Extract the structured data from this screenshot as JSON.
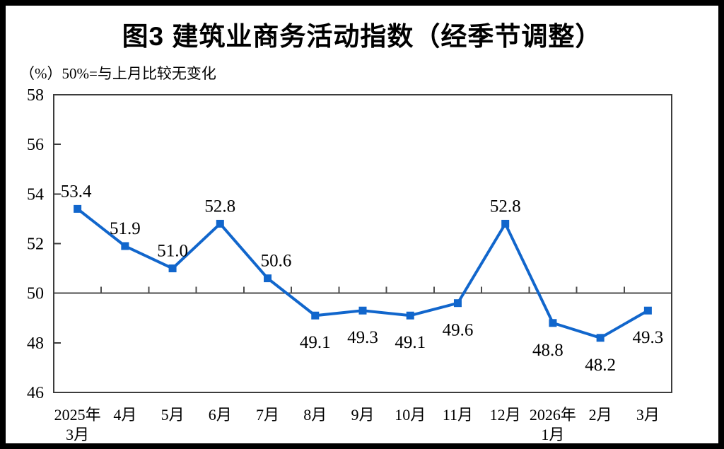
{
  "chart_data": {
    "type": "line",
    "title": "图3 建筑业商务活动指数（经季节调整）",
    "subtitle": "（%）50%=与上月比较无变化",
    "x_categories": [
      [
        "2025年",
        "3月"
      ],
      [
        "4月"
      ],
      [
        "5月"
      ],
      [
        "6月"
      ],
      [
        "7月"
      ],
      [
        "8月"
      ],
      [
        "9月"
      ],
      [
        "10月"
      ],
      [
        "11月"
      ],
      [
        "12月"
      ],
      [
        "2026年",
        "1月"
      ],
      [
        "2月"
      ],
      [
        "3月"
      ]
    ],
    "values": [
      53.4,
      51.9,
      51.0,
      52.8,
      50.6,
      49.1,
      49.3,
      49.1,
      49.6,
      52.8,
      48.8,
      48.2,
      49.3
    ],
    "value_labels": [
      "53.4",
      "51.9",
      "51.0",
      "52.8",
      "50.6",
      "49.1",
      "49.3",
      "49.1",
      "49.6",
      "52.8",
      "48.8",
      "48.2",
      "49.3"
    ],
    "y_axis": {
      "min": 46,
      "max": 58,
      "tick_step": 2,
      "tick_labels": [
        "46",
        "48",
        "50",
        "52",
        "54",
        "56",
        "58"
      ]
    },
    "reference_line": 50,
    "style": {
      "line_color": "#1166CC",
      "marker": "square",
      "axis_color": "#3C3C3C",
      "ref_line_color": "#4D4D4D",
      "grid": false,
      "legend": "none"
    }
  }
}
